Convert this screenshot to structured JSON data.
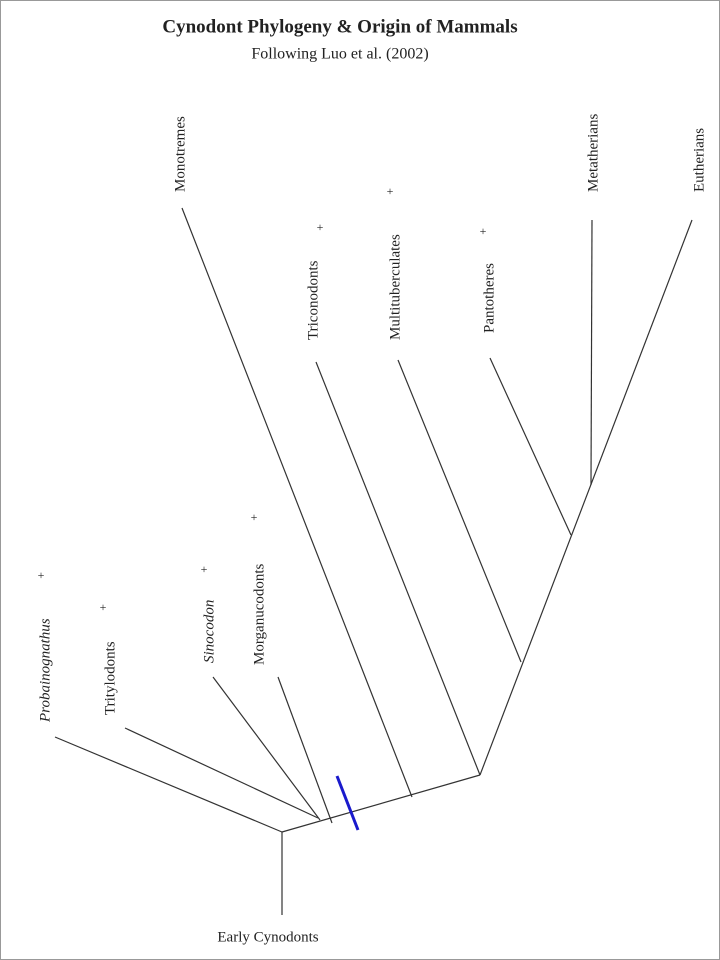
{
  "header": {
    "title": "Cynodont Phylogeny & Origin of Mammals",
    "subtitle": "Following Luo et al. (2002)"
  },
  "nodes": [
    {
      "label": "Probainognathus",
      "mark": "+"
    },
    {
      "label": "Tritylodonts",
      "mark": "+"
    },
    {
      "label": "Sinocodon",
      "mark": "+"
    },
    {
      "label": "Morganucodonts",
      "mark": "+"
    },
    {
      "label": "Monotremes"
    },
    {
      "label": "Triconodonts",
      "mark": "+"
    },
    {
      "label": "Multituberculates",
      "mark": "+"
    },
    {
      "label": "Pantotheres",
      "mark": "+"
    },
    {
      "label": "Metatherians"
    },
    {
      "label": "Eutherians"
    }
  ],
  "root": {
    "label": "Early Cynodonts"
  }
}
